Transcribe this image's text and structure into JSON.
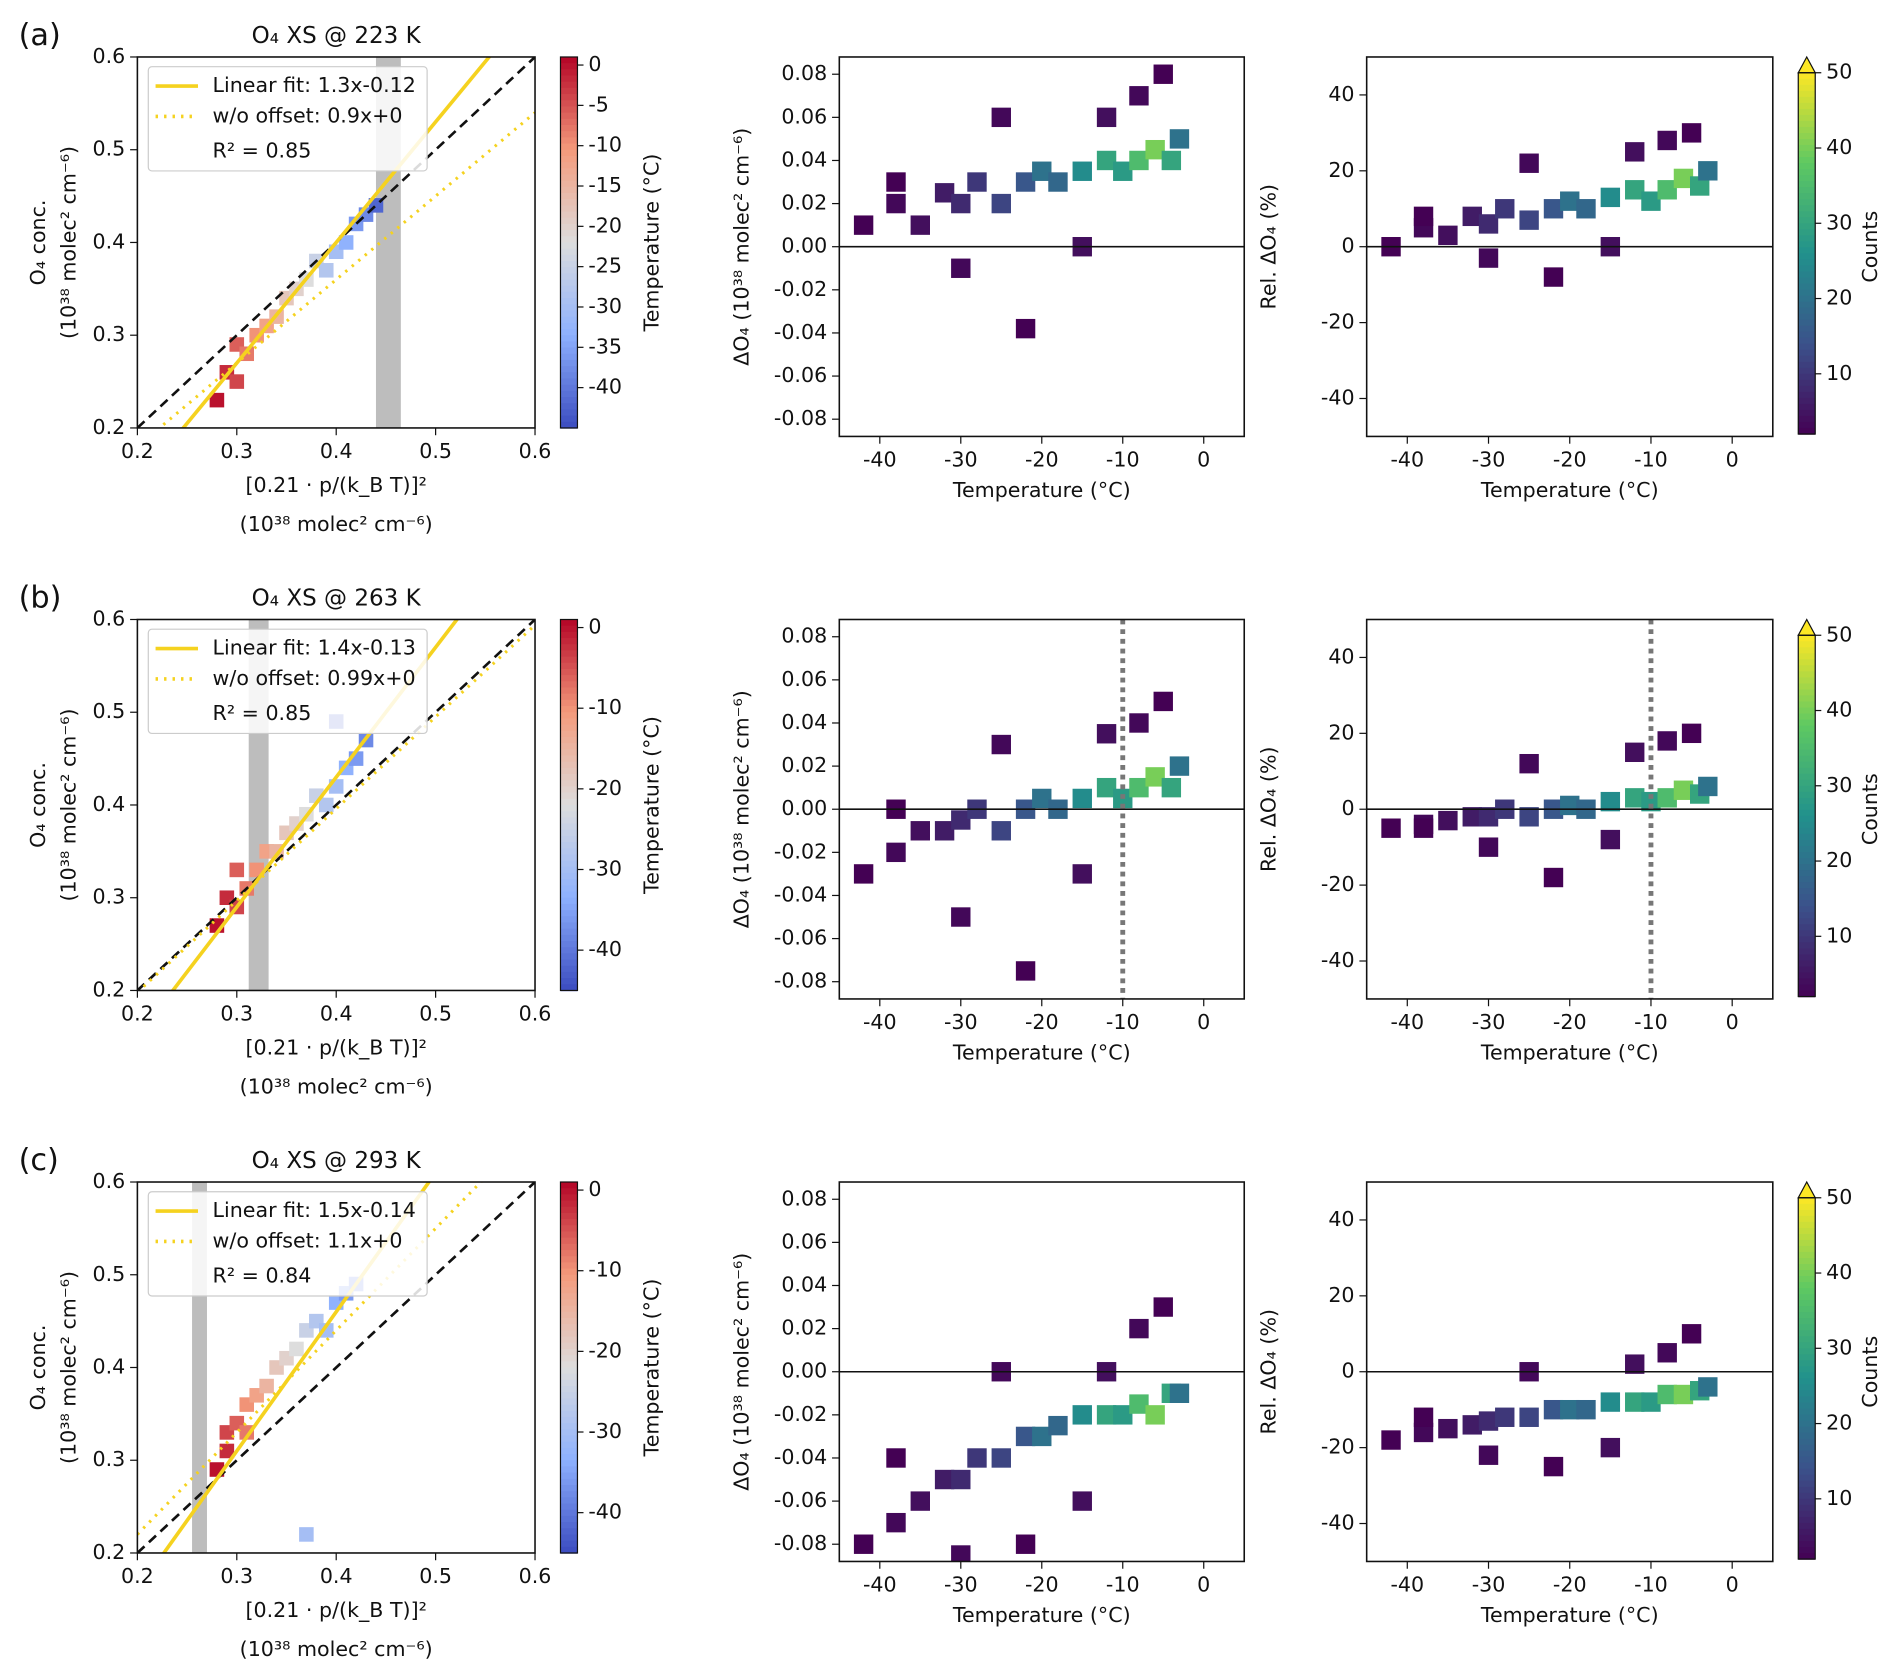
{
  "chart_data": [
    {
      "type": "scatter",
      "panel_label": "(a)",
      "title": "O₄ XS @ 223 K",
      "xlabel": [
        "[0.21 · p/(k_B T)]²",
        "(10³⁸ molec² cm⁻⁶)"
      ],
      "ylabel": [
        "O₄ conc.",
        "(10³⁸ molec² cm⁻⁶)"
      ],
      "xlim": [
        0.2,
        0.6
      ],
      "ylim": [
        0.2,
        0.6
      ],
      "xticks": [
        0.2,
        0.3,
        0.4,
        0.5,
        0.6
      ],
      "yticks": [
        0.2,
        0.3,
        0.4,
        0.5,
        0.6
      ],
      "band": [
        0.44,
        0.465
      ],
      "lines": [
        {
          "name": "Linear fit:   1.3x-0.12",
          "slope": 1.3,
          "intercept": -0.12,
          "color": "#f5d21f",
          "style": "solid"
        },
        {
          "name": "w/o offset: 0.9x+0",
          "slope": 0.9,
          "intercept": 0,
          "color": "#f5d21f",
          "style": "dotted"
        }
      ],
      "annotation": "R² = 0.85",
      "points": {
        "x": [
          0.28,
          0.29,
          0.3,
          0.3,
          0.31,
          0.32,
          0.33,
          0.34,
          0.35,
          0.36,
          0.37,
          0.38,
          0.39,
          0.4,
          0.41,
          0.42,
          0.43,
          0.44
        ],
        "y": [
          0.23,
          0.26,
          0.25,
          0.29,
          0.28,
          0.3,
          0.31,
          0.32,
          0.34,
          0.35,
          0.36,
          0.38,
          0.37,
          0.39,
          0.4,
          0.42,
          0.43,
          0.44
        ],
        "temperature": [
          0,
          -2,
          -4,
          -6,
          -8,
          -10,
          -12,
          -15,
          -18,
          -20,
          -22,
          -25,
          -28,
          -30,
          -33,
          -36,
          -38,
          -42
        ]
      },
      "colorbar": {
        "label": "Temperature (°C)",
        "lim": [
          -45,
          1
        ],
        "ticks": [
          0,
          -5,
          -10,
          -15,
          -20,
          -25,
          -30,
          -35,
          -40
        ],
        "cmap": "coolwarm"
      }
    },
    {
      "type": "hexbin",
      "xlabel": "Temperature (°C)",
      "ylabel": "ΔO₄ (10³⁸ molec² cm⁻⁶)",
      "xlim": [
        -45,
        5
      ],
      "ylim": [
        -0.088,
        0.088
      ],
      "xticks": [
        -40,
        -30,
        -20,
        -10,
        0
      ],
      "yticks": [
        -0.08,
        -0.06,
        -0.04,
        -0.02,
        {
          "value": 0,
          "label": "0.00"
        },
        0.02,
        0.04,
        0.06,
        0.08
      ],
      "hline": 0,
      "points": {
        "x": [
          -42,
          -38,
          -35,
          -32,
          -30,
          -28,
          -25,
          -22,
          -20,
          -18,
          -15,
          -12,
          -10,
          -8,
          -6,
          -4,
          -3,
          -22,
          -30,
          -15,
          -8,
          -5,
          -38,
          -25,
          -12
        ],
        "y": [
          0.01,
          0.02,
          0.01,
          0.025,
          0.02,
          0.03,
          0.02,
          0.03,
          0.035,
          0.03,
          0.035,
          0.04,
          0.035,
          0.04,
          0.045,
          0.04,
          0.05,
          -0.038,
          -0.01,
          0.0,
          0.07,
          0.08,
          0.03,
          0.06,
          0.06
        ],
        "counts": [
          2,
          3,
          4,
          6,
          8,
          10,
          12,
          15,
          20,
          18,
          25,
          30,
          28,
          35,
          40,
          30,
          20,
          1,
          3,
          4,
          3,
          2,
          2,
          3,
          4
        ]
      }
    },
    {
      "type": "hexbin",
      "xlabel": "Temperature (°C)",
      "ylabel": "Rel. ΔO₄ (%)",
      "xlim": [
        -45,
        5
      ],
      "ylim": [
        -50,
        50
      ],
      "xticks": [
        -40,
        -30,
        -20,
        -10,
        0
      ],
      "yticks": [
        -40,
        -20,
        0,
        20,
        40
      ],
      "hline": 0,
      "points": {
        "x": [
          -42,
          -38,
          -35,
          -32,
          -30,
          -28,
          -25,
          -22,
          -20,
          -18,
          -15,
          -12,
          -10,
          -8,
          -6,
          -4,
          -3,
          -22,
          -30,
          -15,
          -8,
          -5,
          -38,
          -25,
          -12
        ],
        "y": [
          0,
          5,
          3,
          8,
          6,
          10,
          7,
          10,
          12,
          10,
          13,
          15,
          12,
          15,
          18,
          16,
          20,
          -8,
          -3,
          0,
          28,
          30,
          8,
          22,
          25
        ],
        "counts": [
          2,
          3,
          4,
          6,
          8,
          10,
          12,
          15,
          20,
          18,
          25,
          30,
          28,
          35,
          40,
          30,
          20,
          1,
          3,
          4,
          3,
          2,
          2,
          3,
          4
        ]
      },
      "colorbar": {
        "label": "Counts",
        "lim": [
          2,
          50
        ],
        "ticks": [
          10,
          20,
          30,
          40,
          50
        ],
        "cmap": "viridis",
        "extend": "max"
      }
    },
    {
      "type": "scatter",
      "panel_label": "(b)",
      "title": "O₄ XS @ 263 K",
      "xlabel": [
        "[0.21 · p/(k_B T)]²",
        "(10³⁸ molec² cm⁻⁶)"
      ],
      "ylabel": [
        "O₄ conc.",
        "(10³⁸ molec² cm⁻⁶)"
      ],
      "xlim": [
        0.2,
        0.6
      ],
      "ylim": [
        0.2,
        0.6
      ],
      "xticks": [
        0.2,
        0.3,
        0.4,
        0.5,
        0.6
      ],
      "yticks": [
        0.2,
        0.3,
        0.4,
        0.5,
        0.6
      ],
      "band": [
        0.312,
        0.332
      ],
      "lines": [
        {
          "name": "Linear fit:   1.4x-0.13",
          "slope": 1.4,
          "intercept": -0.13,
          "color": "#f5d21f",
          "style": "solid"
        },
        {
          "name": "w/o offset: 0.99x+0",
          "slope": 0.99,
          "intercept": 0,
          "color": "#f5d21f",
          "style": "dotted"
        }
      ],
      "annotation": "R² = 0.85",
      "points": {
        "x": [
          0.28,
          0.29,
          0.3,
          0.3,
          0.31,
          0.32,
          0.33,
          0.34,
          0.35,
          0.36,
          0.37,
          0.38,
          0.39,
          0.4,
          0.41,
          0.42,
          0.43,
          0.4
        ],
        "y": [
          0.27,
          0.3,
          0.29,
          0.33,
          0.31,
          0.33,
          0.35,
          0.35,
          0.37,
          0.38,
          0.39,
          0.41,
          0.4,
          0.42,
          0.44,
          0.45,
          0.47,
          0.49
        ],
        "temperature": [
          0,
          -2,
          -4,
          -6,
          -8,
          -10,
          -12,
          -15,
          -18,
          -20,
          -22,
          -25,
          -28,
          -30,
          -33,
          -36,
          -38,
          -42
        ]
      },
      "colorbar": {
        "label": "Temperature (°C)",
        "lim": [
          -45,
          1
        ],
        "ticks": [
          0,
          -10,
          -20,
          -30,
          -40
        ],
        "cmap": "coolwarm"
      }
    },
    {
      "type": "hexbin",
      "xlabel": "Temperature (°C)",
      "ylabel": "ΔO₄ (10³⁸ molec² cm⁻⁶)",
      "xlim": [
        -45,
        5
      ],
      "ylim": [
        -0.088,
        0.088
      ],
      "xticks": [
        -40,
        -30,
        -20,
        -10,
        0
      ],
      "yticks": [
        -0.08,
        -0.06,
        -0.04,
        -0.02,
        {
          "value": 0,
          "label": "0.00"
        },
        0.02,
        0.04,
        0.06,
        0.08
      ],
      "hline": 0,
      "vline": -10,
      "points": {
        "x": [
          -42,
          -38,
          -35,
          -32,
          -30,
          -28,
          -25,
          -22,
          -20,
          -18,
          -15,
          -12,
          -10,
          -8,
          -6,
          -4,
          -3,
          -22,
          -30,
          -15,
          -8,
          -5,
          -38,
          -25,
          -12
        ],
        "y": [
          -0.03,
          -0.02,
          -0.01,
          -0.01,
          -0.005,
          0.0,
          -0.01,
          0.0,
          0.005,
          0.0,
          0.005,
          0.01,
          0.005,
          0.01,
          0.015,
          0.01,
          0.02,
          -0.075,
          -0.05,
          -0.03,
          0.04,
          0.05,
          0.0,
          0.03,
          0.035
        ],
        "counts": [
          2,
          3,
          4,
          6,
          8,
          10,
          12,
          15,
          20,
          18,
          25,
          30,
          28,
          35,
          40,
          30,
          20,
          1,
          3,
          4,
          3,
          2,
          2,
          3,
          4
        ]
      }
    },
    {
      "type": "hexbin",
      "xlabel": "Temperature (°C)",
      "ylabel": "Rel. ΔO₄ (%)",
      "xlim": [
        -45,
        5
      ],
      "ylim": [
        -50,
        50
      ],
      "xticks": [
        -40,
        -30,
        -20,
        -10,
        0
      ],
      "yticks": [
        -40,
        -20,
        0,
        20,
        40
      ],
      "hline": 0,
      "vline": -10,
      "points": {
        "x": [
          -42,
          -38,
          -35,
          -32,
          -30,
          -28,
          -25,
          -22,
          -20,
          -18,
          -15,
          -12,
          -10,
          -8,
          -6,
          -4,
          -3,
          -22,
          -30,
          -15,
          -8,
          -5,
          -38,
          -25,
          -12
        ],
        "y": [
          -5,
          -4,
          -3,
          -2,
          -2,
          0,
          -2,
          0,
          1,
          0,
          2,
          3,
          2,
          3,
          5,
          4,
          6,
          -18,
          -10,
          -8,
          18,
          20,
          -5,
          12,
          15
        ],
        "counts": [
          2,
          3,
          4,
          6,
          8,
          10,
          12,
          15,
          20,
          18,
          25,
          30,
          28,
          35,
          40,
          30,
          20,
          1,
          3,
          4,
          3,
          2,
          2,
          3,
          4
        ]
      },
      "colorbar": {
        "label": "Counts",
        "lim": [
          2,
          50
        ],
        "ticks": [
          10,
          20,
          30,
          40,
          50
        ],
        "cmap": "viridis",
        "extend": "max"
      }
    },
    {
      "type": "scatter",
      "panel_label": "(c)",
      "title": "O₄ XS @ 293 K",
      "xlabel": [
        "[0.21 · p/(k_B T)]²",
        "(10³⁸ molec² cm⁻⁶)"
      ],
      "ylabel": [
        "O₄ conc.",
        "(10³⁸ molec² cm⁻⁶)"
      ],
      "xlim": [
        0.2,
        0.6
      ],
      "ylim": [
        0.2,
        0.6
      ],
      "xticks": [
        0.2,
        0.3,
        0.4,
        0.5,
        0.6
      ],
      "yticks": [
        0.2,
        0.3,
        0.4,
        0.5,
        0.6
      ],
      "band": [
        0.255,
        0.27
      ],
      "lines": [
        {
          "name": "Linear fit:   1.5x-0.14",
          "slope": 1.5,
          "intercept": -0.14,
          "color": "#f5d21f",
          "style": "solid"
        },
        {
          "name": "w/o offset: 1.1x+0",
          "slope": 1.1,
          "intercept": 0,
          "color": "#f5d21f",
          "style": "dotted"
        }
      ],
      "annotation": "R² = 0.84",
      "points": {
        "x": [
          0.28,
          0.29,
          0.29,
          0.3,
          0.31,
          0.31,
          0.32,
          0.33,
          0.34,
          0.35,
          0.36,
          0.37,
          0.38,
          0.39,
          0.4,
          0.41,
          0.42,
          0.37
        ],
        "y": [
          0.29,
          0.31,
          0.33,
          0.34,
          0.33,
          0.36,
          0.37,
          0.38,
          0.4,
          0.41,
          0.42,
          0.44,
          0.45,
          0.44,
          0.47,
          0.48,
          0.49,
          0.22
        ],
        "temperature": [
          0,
          -2,
          -4,
          -6,
          -8,
          -10,
          -12,
          -15,
          -18,
          -20,
          -22,
          -25,
          -28,
          -30,
          -33,
          -36,
          -38,
          -30
        ]
      },
      "colorbar": {
        "label": "Temperature (°C)",
        "lim": [
          -45,
          1
        ],
        "ticks": [
          0,
          -10,
          -20,
          -30,
          -40
        ],
        "cmap": "coolwarm"
      }
    },
    {
      "type": "hexbin",
      "xlabel": "Temperature (°C)",
      "ylabel": "ΔO₄ (10³⁸ molec² cm⁻⁶)",
      "xlim": [
        -45,
        5
      ],
      "ylim": [
        -0.088,
        0.088
      ],
      "xticks": [
        -40,
        -30,
        -20,
        -10,
        0
      ],
      "yticks": [
        -0.08,
        -0.06,
        -0.04,
        -0.02,
        {
          "value": 0,
          "label": "0.00"
        },
        0.02,
        0.04,
        0.06,
        0.08
      ],
      "hline": 0,
      "points": {
        "x": [
          -42,
          -38,
          -35,
          -32,
          -30,
          -28,
          -25,
          -22,
          -20,
          -18,
          -15,
          -12,
          -10,
          -8,
          -6,
          -4,
          -3,
          -22,
          -30,
          -15,
          -8,
          -5,
          -38,
          -25,
          -12
        ],
        "y": [
          -0.08,
          -0.07,
          -0.06,
          -0.05,
          -0.05,
          -0.04,
          -0.04,
          -0.03,
          -0.03,
          -0.025,
          -0.02,
          -0.02,
          -0.02,
          -0.015,
          -0.02,
          -0.01,
          -0.01,
          -0.08,
          -0.085,
          -0.06,
          0.02,
          0.03,
          -0.04,
          0.0,
          0.0
        ],
        "counts": [
          2,
          3,
          4,
          6,
          8,
          10,
          12,
          15,
          20,
          18,
          25,
          30,
          28,
          35,
          40,
          30,
          20,
          1,
          3,
          4,
          3,
          2,
          2,
          3,
          4
        ]
      }
    },
    {
      "type": "hexbin",
      "xlabel": "Temperature (°C)",
      "ylabel": "Rel. ΔO₄ (%)",
      "xlim": [
        -45,
        5
      ],
      "ylim": [
        -50,
        50
      ],
      "xticks": [
        -40,
        -30,
        -20,
        -10,
        0
      ],
      "yticks": [
        -40,
        -20,
        0,
        20,
        40
      ],
      "hline": 0,
      "points": {
        "x": [
          -42,
          -38,
          -35,
          -32,
          -30,
          -28,
          -25,
          -22,
          -20,
          -18,
          -15,
          -12,
          -10,
          -8,
          -6,
          -4,
          -3,
          -22,
          -30,
          -15,
          -8,
          -5,
          -38,
          -25,
          -12
        ],
        "y": [
          -18,
          -16,
          -15,
          -14,
          -13,
          -12,
          -12,
          -10,
          -10,
          -10,
          -8,
          -8,
          -8,
          -6,
          -6,
          -5,
          -4,
          -25,
          -22,
          -20,
          5,
          10,
          -12,
          0,
          2
        ],
        "counts": [
          2,
          3,
          4,
          6,
          8,
          10,
          12,
          15,
          20,
          18,
          25,
          30,
          28,
          35,
          40,
          30,
          20,
          1,
          3,
          4,
          3,
          2,
          2,
          3,
          4
        ]
      },
      "colorbar": {
        "label": "Counts",
        "lim": [
          2,
          50
        ],
        "ticks": [
          10,
          20,
          30,
          40,
          50
        ],
        "cmap": "viridis",
        "extend": "max"
      }
    }
  ]
}
